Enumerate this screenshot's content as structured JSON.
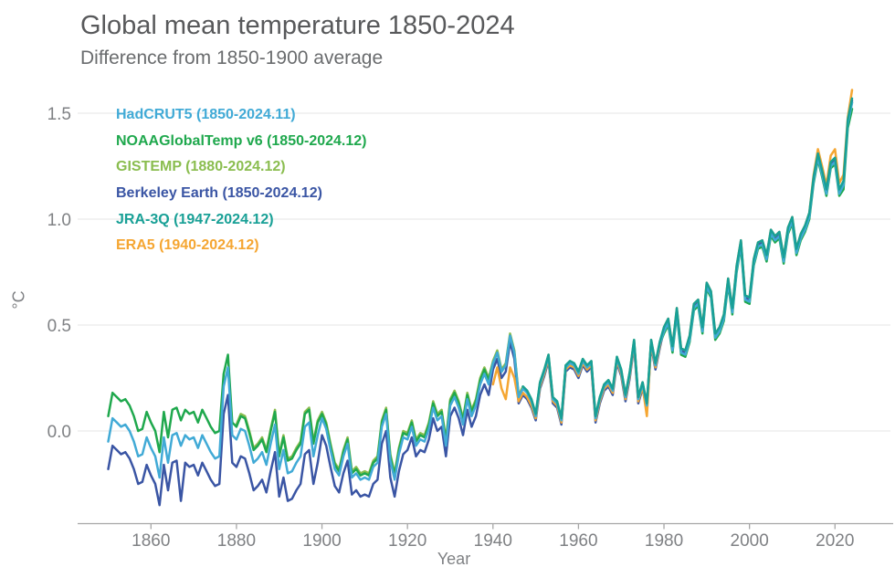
{
  "header": {
    "title": "Global mean temperature 1850-2024",
    "subtitle": "Difference from 1850-1900 average"
  },
  "chart_data": {
    "type": "line",
    "title": "Global mean temperature 1850-2024",
    "subtitle": "Difference from 1850-1900 average",
    "xlabel": "Year",
    "ylabel": "°C",
    "x_range": [
      1850,
      2024
    ],
    "ylim": [
      -0.45,
      1.65
    ],
    "grid": "horizontal-only",
    "legend_position": "top-left-inside",
    "xticks": [
      1860,
      1880,
      1900,
      1920,
      1940,
      1960,
      1980,
      2000,
      2020
    ],
    "yticks": [
      {
        "value": 0.0,
        "label": "0.0"
      },
      {
        "value": 0.5,
        "label": "0.5"
      },
      {
        "value": 1.0,
        "label": "1.0"
      },
      {
        "value": 1.5,
        "label": "1.5"
      }
    ],
    "axis_color": "#a6a6a6",
    "grid_color": "#e6e6e6",
    "tick_label_color": "#7f8184",
    "series": [
      {
        "id": "hadcrut5",
        "label": "HadCRUT5 (1850-2024.11)",
        "color": "#41aad6",
        "start_year": 1850,
        "values": [
          -0.05,
          0.06,
          0.04,
          0.02,
          0.03,
          0.0,
          -0.05,
          -0.12,
          -0.11,
          -0.03,
          -0.08,
          -0.12,
          -0.22,
          -0.03,
          -0.15,
          -0.02,
          -0.01,
          -0.07,
          -0.02,
          -0.04,
          -0.03,
          -0.08,
          -0.02,
          -0.06,
          -0.1,
          -0.13,
          -0.12,
          0.21,
          0.3,
          -0.02,
          -0.04,
          0.01,
          0.0,
          -0.07,
          -0.15,
          -0.13,
          -0.1,
          -0.16,
          -0.06,
          0.03,
          -0.18,
          -0.09,
          -0.2,
          -0.19,
          -0.15,
          -0.12,
          0.02,
          0.04,
          -0.12,
          -0.02,
          0.06,
          0.01,
          -0.09,
          -0.18,
          -0.21,
          -0.12,
          -0.06,
          -0.22,
          -0.2,
          -0.23,
          -0.22,
          -0.23,
          -0.17,
          -0.15,
          0.02,
          0.08,
          -0.14,
          -0.23,
          -0.11,
          -0.03,
          -0.04,
          0.02,
          -0.07,
          -0.04,
          -0.05,
          0.01,
          0.11,
          0.05,
          0.07,
          -0.07,
          0.12,
          0.16,
          0.11,
          0.03,
          0.15,
          0.07,
          0.12,
          0.22,
          0.27,
          0.22,
          0.32,
          0.37,
          0.28,
          0.31,
          0.45,
          0.37,
          0.16,
          0.2,
          0.18,
          0.14,
          0.07,
          0.22,
          0.28,
          0.35,
          0.15,
          0.13,
          0.05,
          0.3,
          0.32,
          0.31,
          0.27,
          0.33,
          0.3,
          0.32,
          0.06,
          0.15,
          0.21,
          0.23,
          0.19,
          0.34,
          0.28,
          0.16,
          0.27,
          0.42,
          0.15,
          0.22,
          0.12,
          0.42,
          0.31,
          0.41,
          0.47,
          0.51,
          0.38,
          0.56,
          0.37,
          0.36,
          0.43,
          0.58,
          0.6,
          0.47,
          0.68,
          0.64,
          0.44,
          0.47,
          0.53,
          0.7,
          0.56,
          0.76,
          0.88,
          0.62,
          0.61,
          0.79,
          0.87,
          0.88,
          0.81,
          0.93,
          0.9,
          0.92,
          0.8,
          0.94,
          0.99,
          0.84,
          0.91,
          0.95,
          1.01,
          1.18,
          1.29,
          1.21,
          1.12,
          1.25,
          1.27,
          1.12,
          1.16,
          1.45,
          1.55
        ]
      },
      {
        "id": "noaa",
        "label": "NOAAGlobalTemp v6 (1850-2024.12)",
        "color": "#1fa84d",
        "start_year": 1850,
        "values": [
          0.07,
          0.18,
          0.16,
          0.14,
          0.15,
          0.12,
          0.07,
          0.0,
          0.01,
          0.09,
          0.04,
          0.0,
          -0.1,
          0.09,
          -0.03,
          0.1,
          0.11,
          0.05,
          0.1,
          0.08,
          0.09,
          0.04,
          0.1,
          0.06,
          0.02,
          -0.01,
          0.0,
          0.27,
          0.36,
          0.04,
          0.02,
          0.07,
          0.06,
          -0.01,
          -0.09,
          -0.07,
          -0.04,
          -0.1,
          0.0,
          0.09,
          -0.12,
          -0.03,
          -0.14,
          -0.13,
          -0.09,
          -0.06,
          0.08,
          0.1,
          -0.06,
          0.04,
          0.08,
          0.03,
          -0.07,
          -0.16,
          -0.19,
          -0.1,
          -0.04,
          -0.2,
          -0.18,
          -0.21,
          -0.2,
          -0.21,
          -0.15,
          -0.13,
          0.04,
          0.1,
          -0.12,
          -0.21,
          -0.09,
          -0.01,
          -0.02,
          0.04,
          -0.05,
          -0.02,
          -0.03,
          0.03,
          0.13,
          0.07,
          0.09,
          -0.05,
          0.14,
          0.18,
          0.13,
          0.05,
          0.17,
          0.09,
          0.14,
          0.24,
          0.29,
          0.24,
          0.32,
          0.37,
          0.28,
          0.31,
          0.45,
          0.37,
          0.16,
          0.2,
          0.18,
          0.14,
          0.07,
          0.22,
          0.28,
          0.35,
          0.15,
          0.13,
          0.05,
          0.3,
          0.32,
          0.31,
          0.27,
          0.33,
          0.3,
          0.32,
          0.06,
          0.15,
          0.21,
          0.23,
          0.19,
          0.34,
          0.28,
          0.16,
          0.27,
          0.42,
          0.15,
          0.22,
          0.12,
          0.42,
          0.31,
          0.41,
          0.46,
          0.5,
          0.37,
          0.55,
          0.36,
          0.35,
          0.42,
          0.57,
          0.59,
          0.46,
          0.67,
          0.63,
          0.43,
          0.46,
          0.52,
          0.69,
          0.55,
          0.75,
          0.87,
          0.61,
          0.6,
          0.78,
          0.86,
          0.87,
          0.8,
          0.92,
          0.89,
          0.91,
          0.79,
          0.93,
          0.98,
          0.83,
          0.9,
          0.94,
          1.0,
          1.17,
          1.28,
          1.2,
          1.11,
          1.24,
          1.26,
          1.11,
          1.14,
          1.43,
          1.52
        ]
      },
      {
        "id": "gistemp",
        "label": "GISTEMP (1880-2024.12)",
        "color": "#8abd4f",
        "start_year": 1880,
        "values": [
          0.03,
          0.08,
          0.07,
          0.0,
          -0.08,
          -0.06,
          -0.03,
          -0.09,
          0.01,
          0.1,
          -0.11,
          -0.02,
          -0.13,
          -0.12,
          -0.08,
          -0.05,
          0.09,
          0.11,
          -0.05,
          0.05,
          0.09,
          0.04,
          -0.06,
          -0.15,
          -0.18,
          -0.09,
          -0.03,
          -0.19,
          -0.17,
          -0.2,
          -0.19,
          -0.2,
          -0.14,
          -0.12,
          0.05,
          0.11,
          -0.11,
          -0.2,
          -0.08,
          0.0,
          -0.01,
          0.05,
          -0.04,
          -0.01,
          -0.02,
          0.04,
          0.14,
          0.08,
          0.1,
          -0.04,
          0.15,
          0.19,
          0.14,
          0.06,
          0.18,
          0.1,
          0.15,
          0.25,
          0.3,
          0.25,
          0.33,
          0.38,
          0.29,
          0.32,
          0.46,
          0.38,
          0.17,
          0.21,
          0.19,
          0.15,
          0.08,
          0.23,
          0.29,
          0.36,
          0.16,
          0.14,
          0.06,
          0.31,
          0.33,
          0.32,
          0.28,
          0.34,
          0.31,
          0.33,
          0.07,
          0.16,
          0.22,
          0.24,
          0.2,
          0.35,
          0.29,
          0.17,
          0.28,
          0.43,
          0.16,
          0.23,
          0.13,
          0.43,
          0.32,
          0.42,
          0.48,
          0.52,
          0.39,
          0.57,
          0.38,
          0.37,
          0.44,
          0.59,
          0.61,
          0.48,
          0.69,
          0.65,
          0.45,
          0.48,
          0.54,
          0.71,
          0.57,
          0.77,
          0.89,
          0.63,
          0.62,
          0.8,
          0.88,
          0.89,
          0.82,
          0.94,
          0.91,
          0.93,
          0.81,
          0.95,
          1.0,
          0.85,
          0.92,
          0.96,
          1.02,
          1.19,
          1.3,
          1.22,
          1.13,
          1.26,
          1.28,
          1.13,
          1.17,
          1.46,
          1.55
        ]
      },
      {
        "id": "berkeley",
        "label": "Berkeley Earth (1850-2024.12)",
        "color": "#3a55a4",
        "start_year": 1850,
        "values": [
          -0.18,
          -0.07,
          -0.09,
          -0.11,
          -0.1,
          -0.13,
          -0.18,
          -0.25,
          -0.24,
          -0.16,
          -0.21,
          -0.25,
          -0.35,
          -0.16,
          -0.28,
          -0.15,
          -0.14,
          -0.33,
          -0.15,
          -0.17,
          -0.16,
          -0.21,
          -0.15,
          -0.19,
          -0.23,
          -0.26,
          -0.25,
          0.08,
          0.17,
          -0.15,
          -0.17,
          -0.12,
          -0.13,
          -0.2,
          -0.28,
          -0.26,
          -0.23,
          -0.29,
          -0.19,
          -0.1,
          -0.31,
          -0.22,
          -0.33,
          -0.32,
          -0.28,
          -0.25,
          -0.11,
          -0.09,
          -0.25,
          -0.15,
          -0.02,
          -0.07,
          -0.17,
          -0.26,
          -0.29,
          -0.2,
          -0.14,
          -0.3,
          -0.28,
          -0.31,
          -0.3,
          -0.31,
          -0.25,
          -0.23,
          -0.06,
          0.0,
          -0.22,
          -0.31,
          -0.19,
          -0.11,
          -0.09,
          -0.03,
          -0.12,
          -0.09,
          -0.1,
          -0.04,
          0.06,
          0.0,
          0.02,
          -0.12,
          0.07,
          0.11,
          0.06,
          -0.02,
          0.1,
          0.02,
          0.07,
          0.17,
          0.22,
          0.17,
          0.29,
          0.34,
          0.25,
          0.28,
          0.42,
          0.34,
          0.13,
          0.17,
          0.15,
          0.11,
          0.05,
          0.2,
          0.26,
          0.33,
          0.13,
          0.11,
          0.03,
          0.28,
          0.3,
          0.29,
          0.25,
          0.31,
          0.28,
          0.3,
          0.04,
          0.13,
          0.19,
          0.21,
          0.17,
          0.32,
          0.26,
          0.14,
          0.25,
          0.4,
          0.13,
          0.2,
          0.1,
          0.4,
          0.29,
          0.39,
          0.48,
          0.52,
          0.39,
          0.57,
          0.38,
          0.37,
          0.44,
          0.59,
          0.61,
          0.48,
          0.69,
          0.65,
          0.45,
          0.48,
          0.54,
          0.71,
          0.57,
          0.77,
          0.89,
          0.63,
          0.62,
          0.8,
          0.88,
          0.89,
          0.82,
          0.94,
          0.91,
          0.93,
          0.81,
          0.95,
          1.0,
          0.85,
          0.92,
          0.96,
          1.02,
          1.19,
          1.3,
          1.22,
          1.13,
          1.26,
          1.28,
          1.13,
          1.17,
          1.46,
          1.56
        ]
      },
      {
        "id": "jra3q",
        "label": "JRA-3Q (1947-2024.12)",
        "color": "#18a096",
        "start_year": 1947,
        "values": [
          0.21,
          0.19,
          0.15,
          0.08,
          0.23,
          0.29,
          0.36,
          0.16,
          0.14,
          0.06,
          0.31,
          0.33,
          0.32,
          0.28,
          0.34,
          0.31,
          0.33,
          0.07,
          0.16,
          0.22,
          0.24,
          0.2,
          0.35,
          0.29,
          0.17,
          0.28,
          0.43,
          0.16,
          0.23,
          0.13,
          0.43,
          0.32,
          0.42,
          0.49,
          0.53,
          0.4,
          0.58,
          0.39,
          0.38,
          0.45,
          0.6,
          0.62,
          0.49,
          0.7,
          0.66,
          0.46,
          0.49,
          0.55,
          0.72,
          0.58,
          0.78,
          0.9,
          0.64,
          0.63,
          0.81,
          0.89,
          0.9,
          0.83,
          0.95,
          0.92,
          0.94,
          0.82,
          0.96,
          1.01,
          0.86,
          0.93,
          0.97,
          1.03,
          1.2,
          1.31,
          1.23,
          1.14,
          1.27,
          1.29,
          1.14,
          1.18,
          1.47,
          1.57
        ]
      },
      {
        "id": "era5",
        "label": "ERA5 (1940-2024.12)",
        "color": "#f5a632",
        "start_year": 1940,
        "values": [
          0.22,
          0.3,
          0.2,
          0.15,
          0.3,
          0.25,
          0.14,
          0.18,
          0.16,
          0.12,
          0.06,
          0.21,
          0.27,
          0.34,
          0.14,
          0.12,
          0.04,
          0.29,
          0.31,
          0.3,
          0.26,
          0.32,
          0.29,
          0.31,
          0.05,
          0.14,
          0.2,
          0.22,
          0.18,
          0.33,
          0.27,
          0.15,
          0.26,
          0.41,
          0.14,
          0.21,
          0.07,
          0.41,
          0.3,
          0.4,
          0.49,
          0.53,
          0.4,
          0.58,
          0.39,
          0.38,
          0.45,
          0.6,
          0.62,
          0.49,
          0.7,
          0.66,
          0.46,
          0.49,
          0.55,
          0.72,
          0.58,
          0.78,
          0.9,
          0.64,
          0.63,
          0.81,
          0.89,
          0.9,
          0.83,
          0.95,
          0.92,
          0.94,
          0.82,
          0.96,
          1.01,
          0.86,
          0.93,
          0.97,
          1.03,
          1.21,
          1.33,
          1.25,
          1.16,
          1.3,
          1.33,
          1.17,
          1.21,
          1.48,
          1.61
        ]
      }
    ]
  }
}
